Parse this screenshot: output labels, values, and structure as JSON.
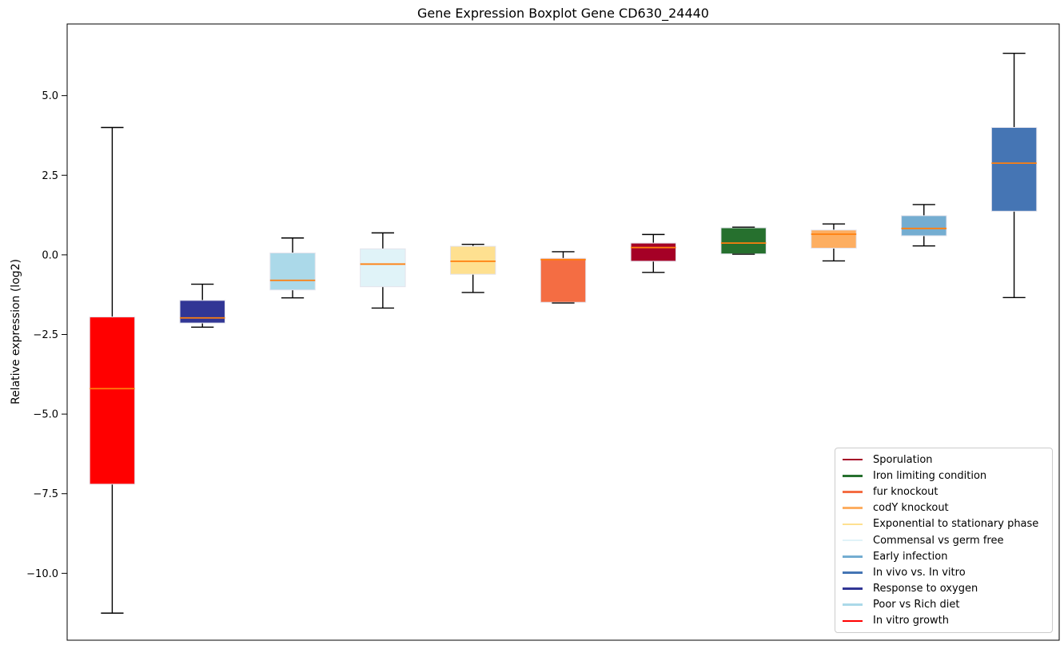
{
  "chart_data": {
    "type": "boxplot",
    "title": "Gene Expression Boxplot Gene CD630_24440",
    "xlabel": "",
    "ylabel": "Relative expression (log2)",
    "ylim": [
      -12.1,
      7.25
    ],
    "yticks": [
      5.0,
      2.5,
      0.0,
      -2.5,
      -5.0,
      -7.5,
      -10.0
    ],
    "grid": false,
    "x_tick_labels_visible": false,
    "legend_position": "lower right",
    "median_color": "#ff7f0e",
    "whisker_color": "#000000",
    "box_edge_color": "#e3e3ec",
    "boxes": [
      {
        "label": "In vitro growth",
        "color": "#ff0000",
        "whislo": -11.25,
        "q1": -7.2,
        "med": -4.2,
        "q3": -1.95,
        "whishi": 4.0
      },
      {
        "label": "Response to oxygen",
        "color": "#313695",
        "whislo": -2.27,
        "q1": -2.14,
        "med": -1.98,
        "q3": -1.43,
        "whishi": -0.92
      },
      {
        "label": "Poor vs Rich diet",
        "color": "#abd9e9",
        "whislo": -1.35,
        "q1": -1.1,
        "med": -0.8,
        "q3": 0.06,
        "whishi": 0.53
      },
      {
        "label": "Commensal vs germ free",
        "color": "#e0f3f8",
        "whislo": -1.67,
        "q1": -1.0,
        "med": -0.29,
        "q3": 0.19,
        "whishi": 0.69
      },
      {
        "label": "Exponential to stationary phase",
        "color": "#fee090",
        "whislo": -1.18,
        "q1": -0.61,
        "med": -0.2,
        "q3": 0.27,
        "whishi": 0.33
      },
      {
        "label": "fur knockout",
        "color": "#f46d43",
        "whislo": -1.51,
        "q1": -1.49,
        "med": -0.15,
        "q3": -0.11,
        "whishi": 0.1
      },
      {
        "label": "Sporulation",
        "color": "#a50026",
        "whislo": -0.55,
        "q1": -0.2,
        "med": 0.23,
        "q3": 0.37,
        "whishi": 0.64
      },
      {
        "label": "Iron limiting condition",
        "color": "#26702e",
        "whislo": 0.02,
        "q1": 0.03,
        "med": 0.37,
        "q3": 0.85,
        "whishi": 0.87
      },
      {
        "label": "codY knockout",
        "color": "#fdae61",
        "whislo": -0.19,
        "q1": 0.21,
        "med": 0.65,
        "q3": 0.78,
        "whishi": 0.97
      },
      {
        "label": "Early infection",
        "color": "#74add1",
        "whislo": 0.28,
        "q1": 0.6,
        "med": 0.83,
        "q3": 1.23,
        "whishi": 1.58
      },
      {
        "label": "In vivo vs. In vitro",
        "color": "#4575b4",
        "whislo": -1.34,
        "q1": 1.37,
        "med": 2.88,
        "q3": 4.0,
        "whishi": 6.33
      }
    ],
    "legend": [
      {
        "label": "Sporulation",
        "color": "#a50026"
      },
      {
        "label": "Iron limiting condition",
        "color": "#26702e"
      },
      {
        "label": "fur knockout",
        "color": "#f46d43"
      },
      {
        "label": "codY knockout",
        "color": "#fdae61"
      },
      {
        "label": "Exponential to stationary phase",
        "color": "#fee090"
      },
      {
        "label": "Commensal vs germ free",
        "color": "#e0f3f8"
      },
      {
        "label": "Early infection",
        "color": "#74add1"
      },
      {
        "label": "In vivo vs. In vitro",
        "color": "#4575b4"
      },
      {
        "label": "Response to oxygen",
        "color": "#313695"
      },
      {
        "label": "Poor vs Rich diet",
        "color": "#abd9e9"
      },
      {
        "label": "In vitro growth",
        "color": "#ff0000"
      }
    ]
  }
}
